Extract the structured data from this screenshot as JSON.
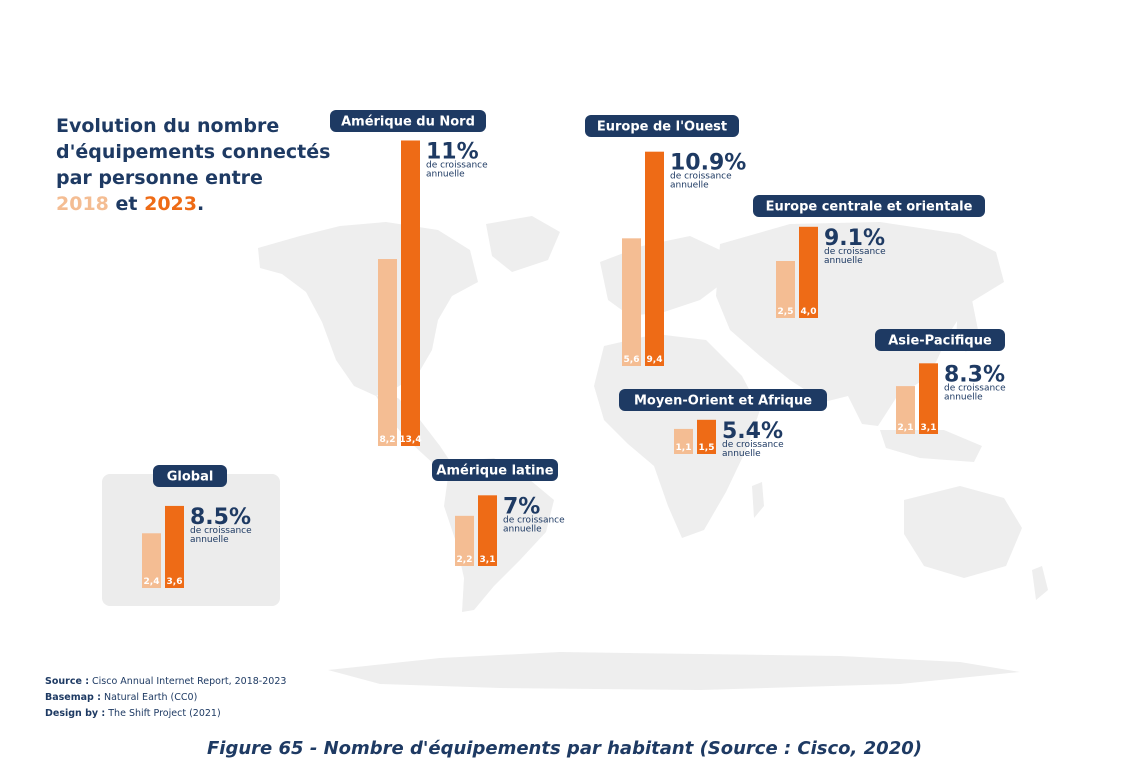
{
  "title": {
    "line1": "Evolution du nombre",
    "line2": "d'équipements connectés",
    "line3": "par personne entre",
    "year1": "2018",
    "conj": "et",
    "year2": "2023",
    "end": "."
  },
  "colors": {
    "bar2018": "#f4bd93",
    "bar2023": "#ee6b16",
    "navy": "#1e3a63",
    "land": "#eeeeee",
    "globalBox": "#ececec"
  },
  "growth_caption": [
    "de croissance",
    "annuelle"
  ],
  "chart_data": {
    "type": "bar",
    "title": "Evolution du nombre d'équipements connectés par personne entre 2018 et 2023.",
    "series_names": [
      "2018",
      "2023"
    ],
    "value_unit": "équipements par habitant",
    "regions": [
      {
        "name": "Amérique du Nord",
        "v2018": 8.2,
        "v2023": 13.4,
        "label2018": "8,2",
        "label2023": "13,4",
        "growth": "11%"
      },
      {
        "name": "Europe de l'Ouest",
        "v2018": 5.6,
        "v2023": 9.4,
        "label2018": "5,6",
        "label2023": "9,4",
        "growth": "10.9%"
      },
      {
        "name": "Europe centrale et orientale",
        "v2018": 2.5,
        "v2023": 4.0,
        "label2018": "2,5",
        "label2023": "4,0",
        "growth": "9.1%"
      },
      {
        "name": "Asie-Pacifique",
        "v2018": 2.1,
        "v2023": 3.1,
        "label2018": "2,1",
        "label2023": "3,1",
        "growth": "8.3%"
      },
      {
        "name": "Moyen-Orient et Afrique",
        "v2018": 1.1,
        "v2023": 1.5,
        "label2018": "1,1",
        "label2023": "1,5",
        "growth": "5.4%"
      },
      {
        "name": "Amérique latine",
        "v2018": 2.2,
        "v2023": 3.1,
        "label2018": "2,2",
        "label2023": "3,1",
        "growth": "7%"
      },
      {
        "name": "Global",
        "v2018": 2.4,
        "v2023": 3.6,
        "label2018": "2,4",
        "label2023": "3,6",
        "growth": "8.5%"
      }
    ]
  },
  "source": {
    "source_label": "Source :",
    "source_text": "Cisco Annual Internet Report, 2018-2023",
    "basemap_label": "Basemap :",
    "basemap_text": "Natural Earth (CC0)",
    "design_label": "Design by :",
    "design_text": "The Shift Project (2021)"
  },
  "caption": "Figure 65 - Nombre d'équipements par habitant (Source : Cisco, 2020)"
}
